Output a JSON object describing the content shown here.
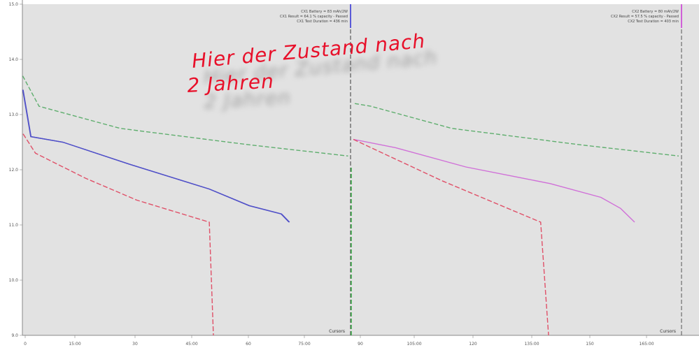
{
  "colors": {
    "background": "#e2e2e2",
    "grid": "#c9c9c9",
    "green": "#5fae6e",
    "blue": "#5050c8",
    "red": "#e05068",
    "magenta": "#d070d8",
    "annotation": "#e8102a"
  },
  "annotation": {
    "line1": "Hier der Zustand nach",
    "line2": "2 Jahren"
  },
  "panels": [
    {
      "legend": [
        "CX1 Battery = 83 mAh/2W",
        "CX1 Result = 64.1 % capacity - Passed",
        "CX1 Test Duration = 436 min"
      ],
      "cursor_label": "Cursors",
      "x_tick_labels": [
        "0",
        "15:00",
        "30",
        "45:00",
        "60",
        "75:00"
      ]
    },
    {
      "legend": [
        "CX2 Battery = 80 mAh/2W",
        "CX2 Result = 57.5 % capacity - Passed",
        "CX2 Test Duration = 403 min"
      ],
      "cursor_label": "Cursors",
      "x_tick_labels": [
        "90",
        "105:00",
        "120",
        "135:00",
        "150",
        "165:00"
      ]
    }
  ],
  "chart_data": {
    "type": "line",
    "y_tick_labels": [
      "9.0",
      "10.0",
      "11.0",
      "12.0",
      "13.0",
      "14.0",
      "15.0"
    ],
    "ylim": [
      9.0,
      15.0
    ],
    "series_left": {
      "green": [
        [
          0.0,
          13.7
        ],
        [
          0.05,
          13.15
        ],
        [
          0.3,
          12.75
        ],
        [
          0.7,
          12.45
        ],
        [
          1.0,
          12.25
        ]
      ],
      "blue": [
        [
          0.0,
          13.45
        ],
        [
          0.03,
          12.6
        ],
        [
          0.15,
          12.5
        ],
        [
          0.4,
          12.1
        ],
        [
          0.7,
          11.65
        ],
        [
          0.85,
          11.35
        ],
        [
          0.97,
          11.2
        ],
        [
          1.0,
          11.05
        ]
      ],
      "red": [
        [
          0.0,
          12.65
        ],
        [
          0.06,
          12.3
        ],
        [
          0.3,
          11.85
        ],
        [
          0.55,
          11.45
        ],
        [
          0.9,
          11.05
        ],
        [
          0.92,
          9.0
        ]
      ]
    },
    "series_right": {
      "green": [
        [
          0.0,
          13.2
        ],
        [
          0.05,
          13.15
        ],
        [
          0.3,
          12.75
        ],
        [
          0.7,
          12.45
        ],
        [
          1.0,
          12.25
        ]
      ],
      "magenta": [
        [
          0.0,
          12.55
        ],
        [
          0.15,
          12.4
        ],
        [
          0.4,
          12.05
        ],
        [
          0.7,
          11.75
        ],
        [
          0.88,
          11.5
        ],
        [
          0.95,
          11.3
        ],
        [
          1.0,
          11.05
        ]
      ],
      "red": [
        [
          0.0,
          12.55
        ],
        [
          0.12,
          12.35
        ],
        [
          0.45,
          11.8
        ],
        [
          0.65,
          11.5
        ],
        [
          0.95,
          11.05
        ],
        [
          0.99,
          9.0
        ]
      ]
    }
  }
}
